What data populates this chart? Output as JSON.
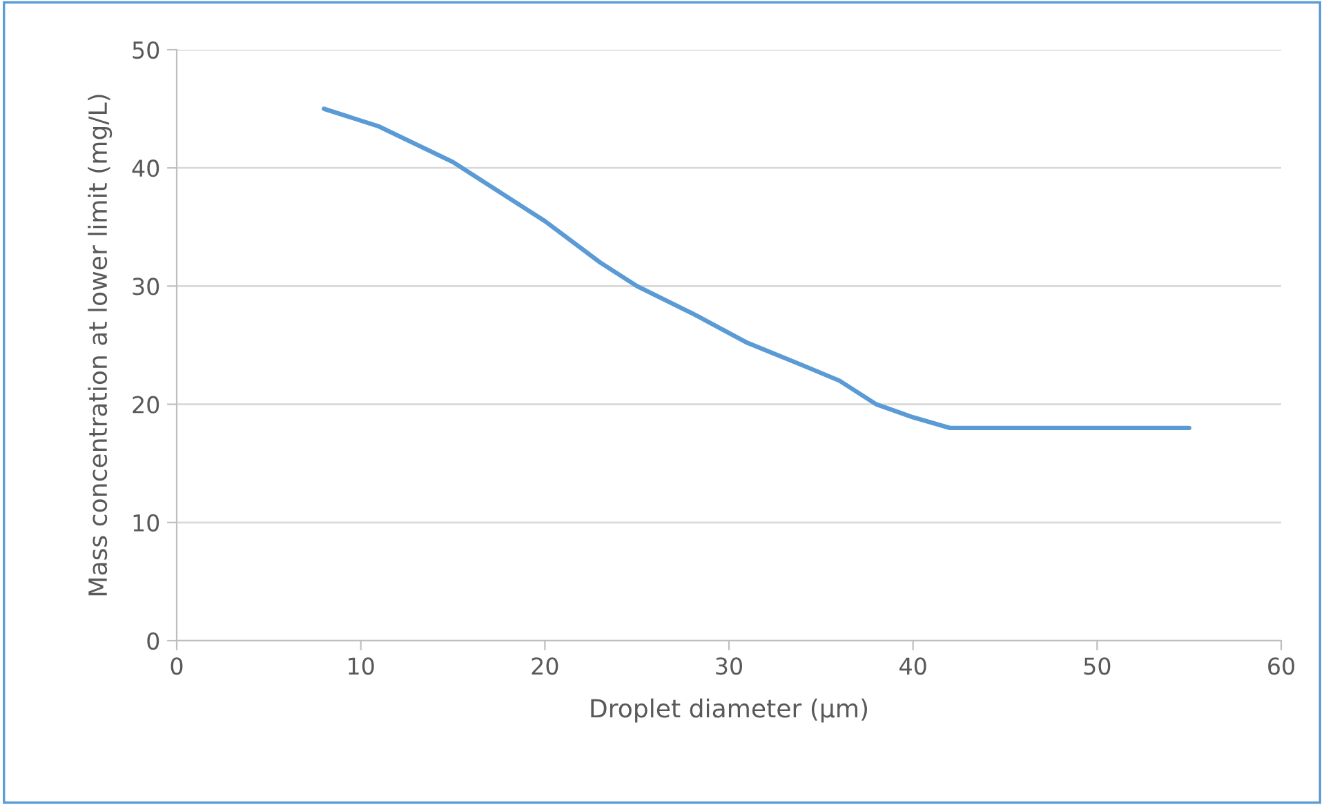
{
  "chart_data": {
    "type": "line",
    "xlabel": "Droplet diameter (μm)",
    "ylabel": "Mass concentration at lower limit (mg/L)",
    "x": [
      8,
      11,
      15,
      20,
      23,
      25,
      28,
      31,
      34,
      36,
      38,
      40,
      42,
      45,
      50,
      55
    ],
    "series": [
      {
        "color": "#5b9bd5",
        "values": [
          45,
          43.5,
          40.5,
          35.5,
          32,
          30,
          27.7,
          25.2,
          23.3,
          22,
          20,
          18.9,
          18,
          18,
          18,
          18
        ]
      }
    ],
    "xlim": [
      0,
      60
    ],
    "xticks": [
      0,
      10,
      20,
      30,
      40,
      50,
      60
    ],
    "ylim": [
      0,
      50
    ],
    "yticks": [
      0,
      10,
      20,
      30,
      40,
      50
    ],
    "grid": "y",
    "marker": "none",
    "line_style": "solid"
  }
}
